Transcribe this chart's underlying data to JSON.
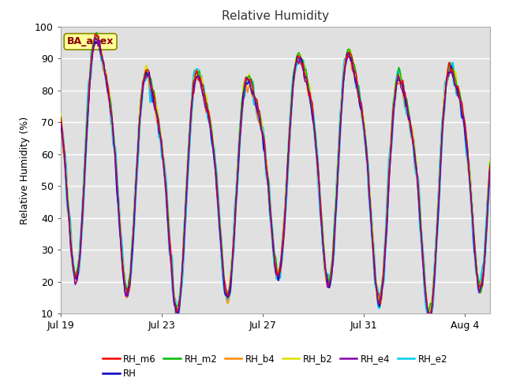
{
  "title": "Relative Humidity",
  "ylabel": "Relative Humidity (%)",
  "ylim": [
    10,
    100
  ],
  "yticks": [
    10,
    20,
    30,
    40,
    50,
    60,
    70,
    80,
    90,
    100
  ],
  "xtick_labels": [
    "Jul 19",
    "Jul 23",
    "Jul 27",
    "Jul 31",
    "Aug 4"
  ],
  "annotation_text": "BA_adex",
  "annotation_color": "#8B0000",
  "annotation_bg": "#FFFF99",
  "series": [
    {
      "name": "RH_m6",
      "color": "#FF0000",
      "lw": 1.0,
      "zorder": 7
    },
    {
      "name": "RH",
      "color": "#0000BB",
      "lw": 1.0,
      "zorder": 6
    },
    {
      "name": "RH_m2",
      "color": "#00BB00",
      "lw": 1.0,
      "zorder": 5
    },
    {
      "name": "RH_b4",
      "color": "#FF8800",
      "lw": 1.0,
      "zorder": 4
    },
    {
      "name": "RH_b2",
      "color": "#DDDD00",
      "lw": 1.5,
      "zorder": 3
    },
    {
      "name": "RH_e4",
      "color": "#8800AA",
      "lw": 1.0,
      "zorder": 8
    },
    {
      "name": "RH_e2",
      "color": "#00CCEE",
      "lw": 2.5,
      "zorder": 2
    }
  ],
  "bg_color": "#E0E0E0",
  "grid_color": "#FFFFFF",
  "n_days": 17,
  "pts_per_day": 48,
  "xtick_positions": [
    0,
    4,
    8,
    12,
    16
  ]
}
